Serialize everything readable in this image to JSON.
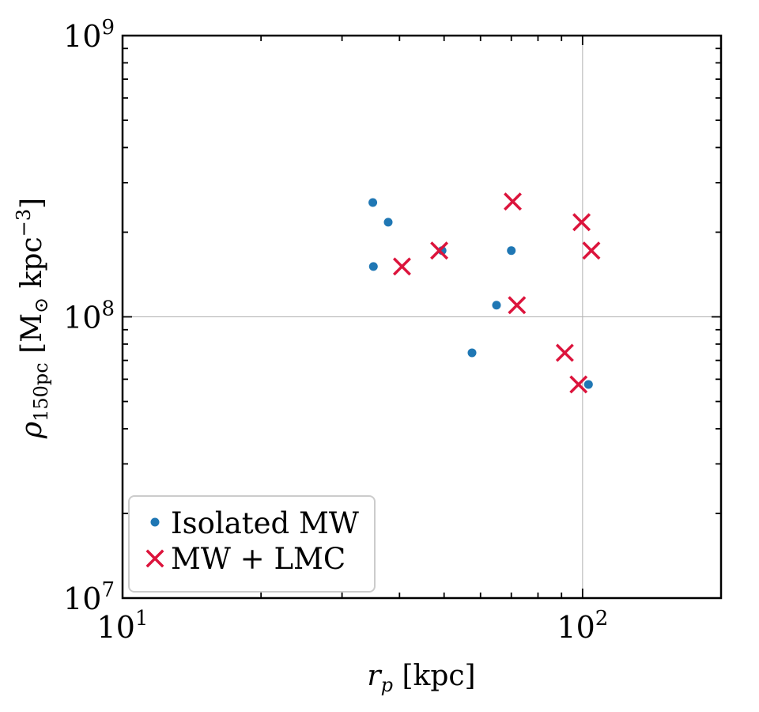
{
  "chart_data": {
    "type": "scatter",
    "xscale": "log",
    "yscale": "log",
    "xlim": [
      10,
      200
    ],
    "ylim": [
      10000000,
      1000000000
    ],
    "grid": true,
    "legend_position": "lower-left",
    "xlabel": "r_p [kpc]",
    "ylabel": "ρ_150pc [M_⊙ kpc^−3]",
    "x_ticks": [
      {
        "value": 10,
        "base": "10",
        "exp": "1"
      },
      {
        "value": 100,
        "base": "10",
        "exp": "2"
      }
    ],
    "y_ticks": [
      {
        "value": 10000000,
        "base": "10",
        "exp": "7"
      },
      {
        "value": 100000000,
        "base": "10",
        "exp": "8"
      },
      {
        "value": 1000000000,
        "base": "10",
        "exp": "9"
      }
    ],
    "series": [
      {
        "name": "Isolated MW",
        "marker": "dot",
        "color": "#1f77b4",
        "points": [
          {
            "x": 35,
            "y": 255000000
          },
          {
            "x": 37.8,
            "y": 217000000
          },
          {
            "x": 35.1,
            "y": 151000000
          },
          {
            "x": 49.5,
            "y": 172000000
          },
          {
            "x": 70,
            "y": 172000000
          },
          {
            "x": 65,
            "y": 110000000
          },
          {
            "x": 57.5,
            "y": 74500000
          },
          {
            "x": 103,
            "y": 57500000
          }
        ]
      },
      {
        "name": "MW + LMC",
        "marker": "x",
        "color": "#dc143c",
        "points": [
          {
            "x": 70.5,
            "y": 257000000
          },
          {
            "x": 99.5,
            "y": 217000000
          },
          {
            "x": 104.5,
            "y": 172000000
          },
          {
            "x": 48.8,
            "y": 172000000
          },
          {
            "x": 40.5,
            "y": 151000000
          },
          {
            "x": 72,
            "y": 110000000
          },
          {
            "x": 91.5,
            "y": 74500000
          },
          {
            "x": 98,
            "y": 57500000
          }
        ]
      }
    ]
  }
}
